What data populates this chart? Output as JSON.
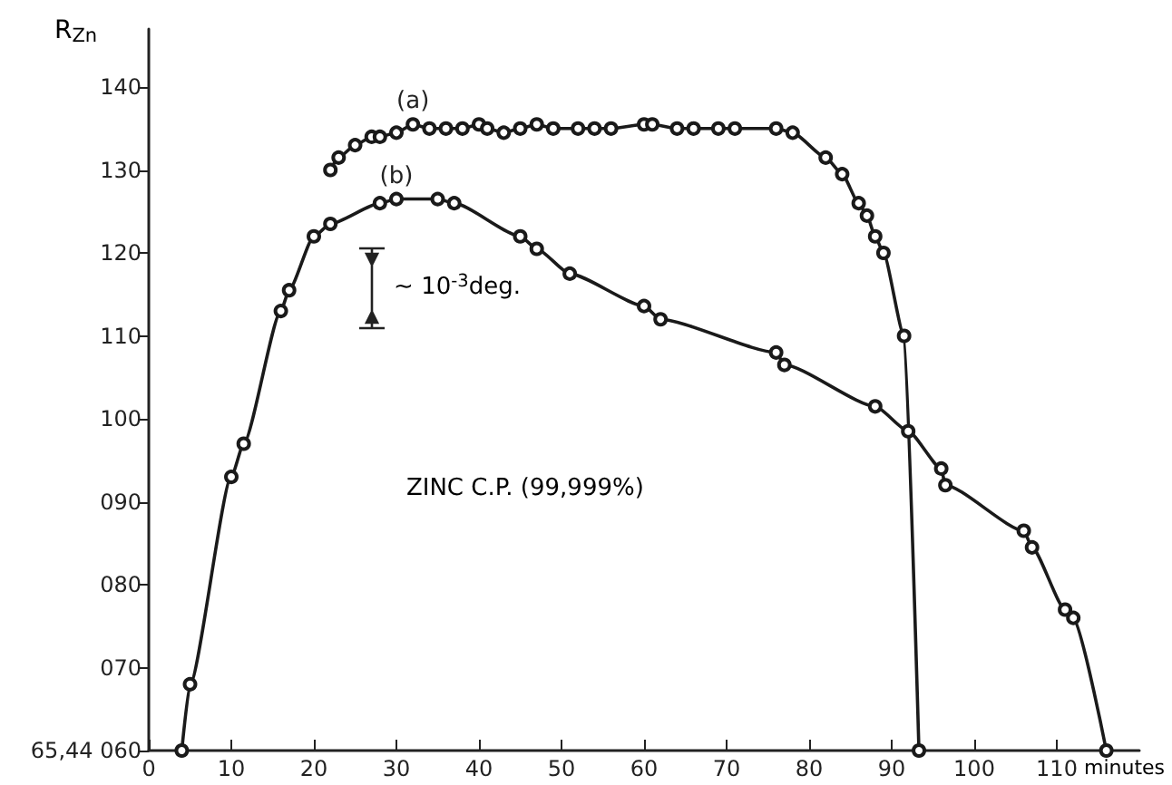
{
  "chart_data": {
    "type": "line",
    "xlabel": "minutes",
    "ylabel": "R$_{Zn}$",
    "xlim": [
      0,
      120
    ],
    "xticks": [
      0,
      10,
      20,
      30,
      40,
      50,
      60,
      70,
      80,
      90,
      100,
      110
    ],
    "ylim": [
      60,
      147
    ],
    "yticks": [
      {
        "value": 60,
        "label": "65,44 060"
      },
      {
        "value": 70,
        "label": "070"
      },
      {
        "value": 80,
        "label": "080"
      },
      {
        "value": 90,
        "label": "090"
      },
      100,
      110,
      120,
      130,
      140
    ],
    "marker": "circle",
    "grid": false,
    "legend": false,
    "series": [
      {
        "name": "(a)",
        "color": "#1a1a1a",
        "x": [
          22,
          23,
          25,
          27,
          28,
          30,
          32,
          34,
          36,
          38,
          40,
          41,
          43,
          45,
          47,
          49,
          52,
          54,
          56,
          60,
          61,
          64,
          66,
          69,
          71,
          76,
          78,
          82,
          84,
          86,
          87,
          88,
          89,
          91.5,
          93.3
        ],
        "values": [
          130,
          131.5,
          133,
          134,
          134,
          134.5,
          135.5,
          135,
          135,
          135,
          135.5,
          135,
          134.5,
          135,
          135.5,
          135,
          135,
          135,
          135,
          135.5,
          135.5,
          135,
          135,
          135,
          135,
          135,
          134.5,
          131.5,
          129.5,
          126,
          124.5,
          122,
          120,
          110,
          60
        ]
      },
      {
        "name": "(b)",
        "color": "#1a1a1a",
        "x": [
          4,
          5,
          10,
          11.5,
          16,
          17,
          20,
          22,
          28,
          30,
          35,
          37,
          45,
          47,
          51,
          60,
          62,
          76,
          77,
          88,
          92,
          96,
          96.5,
          106,
          107,
          111,
          112,
          116
        ],
        "values": [
          60,
          68,
          93,
          97,
          113,
          115.5,
          122,
          123.5,
          126,
          126.5,
          126.5,
          126,
          122,
          120.5,
          117.5,
          113.6,
          112,
          108,
          106.5,
          101.5,
          98.5,
          94,
          92,
          86.5,
          84.5,
          77,
          76,
          60
        ]
      }
    ],
    "annotations": [
      "∼ 10$^{-3}$deg.",
      "ZINC C.P. (99,999%)"
    ]
  }
}
